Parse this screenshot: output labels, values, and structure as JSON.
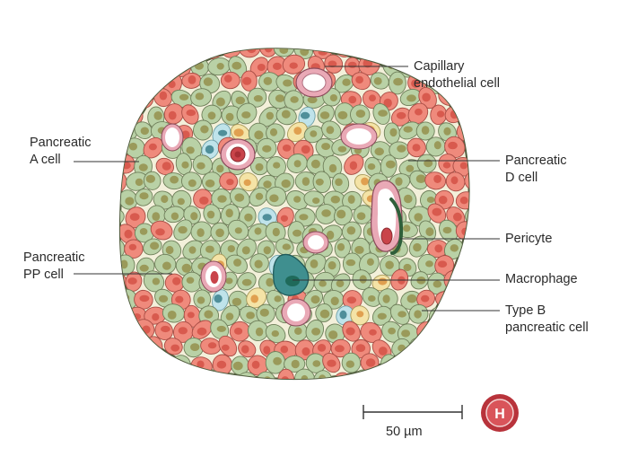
{
  "labels": {
    "capillary": [
      "Capillary",
      "endothelial cell"
    ],
    "a_cell": [
      "Pancreatic",
      "A cell"
    ],
    "d_cell": [
      "Pancreatic",
      "D cell"
    ],
    "pericyte": [
      "Pericyte"
    ],
    "pp_cell": [
      "Pancreatic",
      "PP cell"
    ],
    "macrophage": [
      "Macrophage"
    ],
    "b_cell": [
      "Type B",
      "pancreatic cell"
    ]
  },
  "scale_bar": {
    "label": "50 µm"
  },
  "logo": {
    "letter": "H",
    "icon": "logo-badge-icon"
  },
  "colors": {
    "a_cell": "#ef8a7c",
    "b_cell": "#b9d1a6",
    "d_cell": "#f4e3a6",
    "pp_cell": "#bfe3ea",
    "macrophage": "#3f8f8f",
    "capillary": "#f2c8c8",
    "rbc": "#c9444a",
    "outline": "#4e5a3c"
  }
}
